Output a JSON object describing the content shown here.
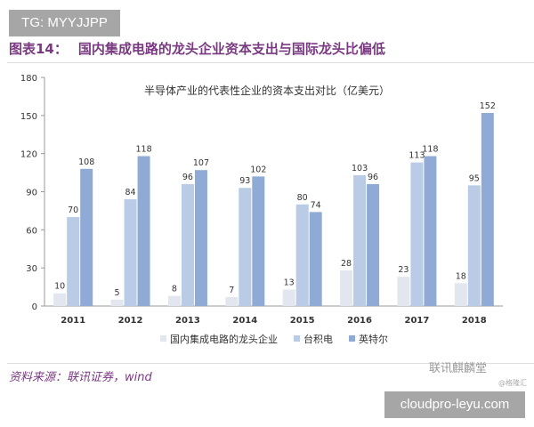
{
  "watermark_top": "TG: MYYJJPP",
  "figure_label": "图表14：",
  "figure_title": "国内集成电路的龙头企业资本支出与国际龙头比偏低",
  "source": "资料来源：联讯证券，wind",
  "watermark_logo": "联讯麒麟堂",
  "watermark_small": "@格隆汇",
  "watermark_bottom": "cloudpro-leyu.com",
  "chart_data": {
    "type": "bar",
    "title": "半导体产业的代表性企业的资本支出对比（亿美元）",
    "categories": [
      "2011",
      "2012",
      "2013",
      "2014",
      "2015",
      "2016",
      "2017",
      "2018"
    ],
    "series": [
      {
        "name": "国内集成电路的龙头企业",
        "color": "#e2e6ee",
        "values": [
          10,
          5,
          8,
          7,
          13,
          28,
          23,
          18
        ]
      },
      {
        "name": "台积电",
        "color": "#b9cbe5",
        "values": [
          70,
          84,
          96,
          93,
          80,
          103,
          113,
          95
        ]
      },
      {
        "name": "英特尔",
        "color": "#8eaad5",
        "values": [
          108,
          118,
          107,
          102,
          74,
          96,
          118,
          152
        ]
      }
    ],
    "ylim": [
      0,
      180
    ],
    "yticks": [
      0,
      30,
      60,
      90,
      120,
      150,
      180
    ],
    "grid": false,
    "legend": "bottom"
  }
}
